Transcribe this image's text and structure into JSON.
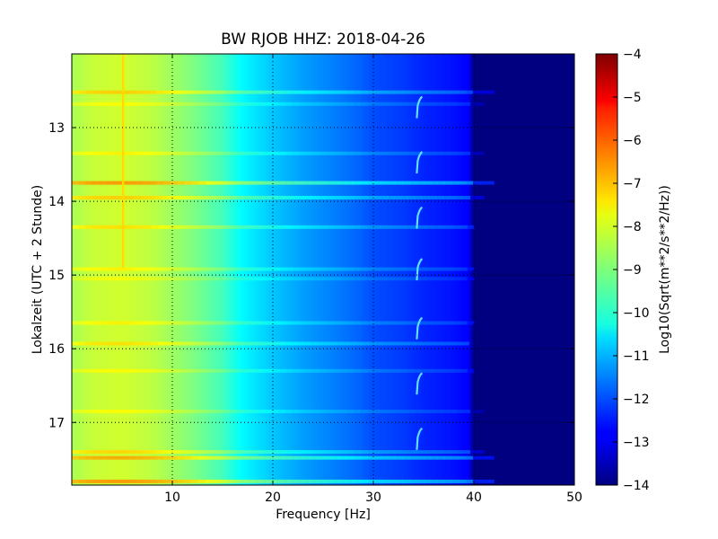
{
  "chart_data": {
    "type": "heatmap",
    "title": "BW RJOB HHZ: 2018-04-26",
    "xlabel": "Frequency [Hz]",
    "ylabel": "Lokalzeit (UTC + 2 Stunde)",
    "xlim": [
      0,
      50
    ],
    "ylim": [
      12.0,
      17.85
    ],
    "y_inverted": true,
    "grid": true,
    "colormap": "jet",
    "xticks": [
      10,
      20,
      30,
      40,
      50
    ],
    "xtick_labels": [
      "10",
      "20",
      "30",
      "40",
      "50"
    ],
    "yticks": [
      13,
      14,
      15,
      16,
      17
    ],
    "ytick_labels": [
      "13",
      "14",
      "15",
      "16",
      "17"
    ],
    "colorbar": {
      "label": "Log10(Sqrt(m**2/s**2/Hz))",
      "range": [
        -14,
        -4
      ],
      "ticks": [
        -4,
        -5,
        -6,
        -7,
        -8,
        -9,
        -10,
        -11,
        -12,
        -13,
        -14
      ],
      "tick_labels": [
        "−4",
        "−5",
        "−6",
        "−7",
        "−8",
        "−9",
        "−10",
        "−11",
        "−12",
        "−13",
        "−14"
      ]
    },
    "spectral_profile": {
      "frequency_hz": [
        0,
        2,
        5,
        8,
        10,
        12,
        15,
        17,
        20,
        23,
        25,
        28,
        30,
        33,
        35,
        38,
        39.5,
        40,
        41,
        42,
        50
      ],
      "log10_amplitude": [
        -8.6,
        -8.3,
        -8.2,
        -8.4,
        -8.7,
        -9.0,
        -9.6,
        -10.3,
        -10.8,
        -11.2,
        -11.4,
        -11.7,
        -12.0,
        -12.2,
        -12.4,
        -12.6,
        -12.8,
        -14,
        -14,
        -14,
        -14
      ]
    },
    "horizontal_bands": [
      {
        "time": 12.52,
        "fmax": 42.0,
        "delta": 1.0
      },
      {
        "time": 12.68,
        "fmax": 41.0,
        "delta": 0.5
      },
      {
        "time": 13.35,
        "fmax": 41.0,
        "delta": 0.6
      },
      {
        "time": 13.75,
        "fmax": 42.0,
        "delta": 1.6
      },
      {
        "time": 13.95,
        "fmax": 41.0,
        "delta": 1.0
      },
      {
        "time": 14.35,
        "fmax": 40.0,
        "delta": 0.8
      },
      {
        "time": 14.92,
        "fmax": 40.0,
        "delta": 0.6
      },
      {
        "time": 15.05,
        "fmax": 40.0,
        "delta": 0.4
      },
      {
        "time": 15.65,
        "fmax": 40.0,
        "delta": 0.6
      },
      {
        "time": 15.93,
        "fmax": 39.5,
        "delta": 0.8
      },
      {
        "time": 16.3,
        "fmax": 40.0,
        "delta": 0.5
      },
      {
        "time": 16.85,
        "fmax": 41.0,
        "delta": 0.5
      },
      {
        "time": 17.4,
        "fmax": 41.0,
        "delta": 0.9
      },
      {
        "time": 17.48,
        "fmax": 42.0,
        "delta": 1.4
      },
      {
        "time": 17.8,
        "fmax": 42.0,
        "delta": 1.6
      }
    ],
    "narrowband_line": {
      "frequency": 5.1,
      "time_start": 12.0,
      "time_end": 14.9,
      "log10_amplitude": -7.4
    },
    "hooks": {
      "frequency": 34.5,
      "times": [
        12.75,
        13.5,
        14.25,
        14.95,
        15.75,
        16.5,
        17.25
      ]
    }
  }
}
